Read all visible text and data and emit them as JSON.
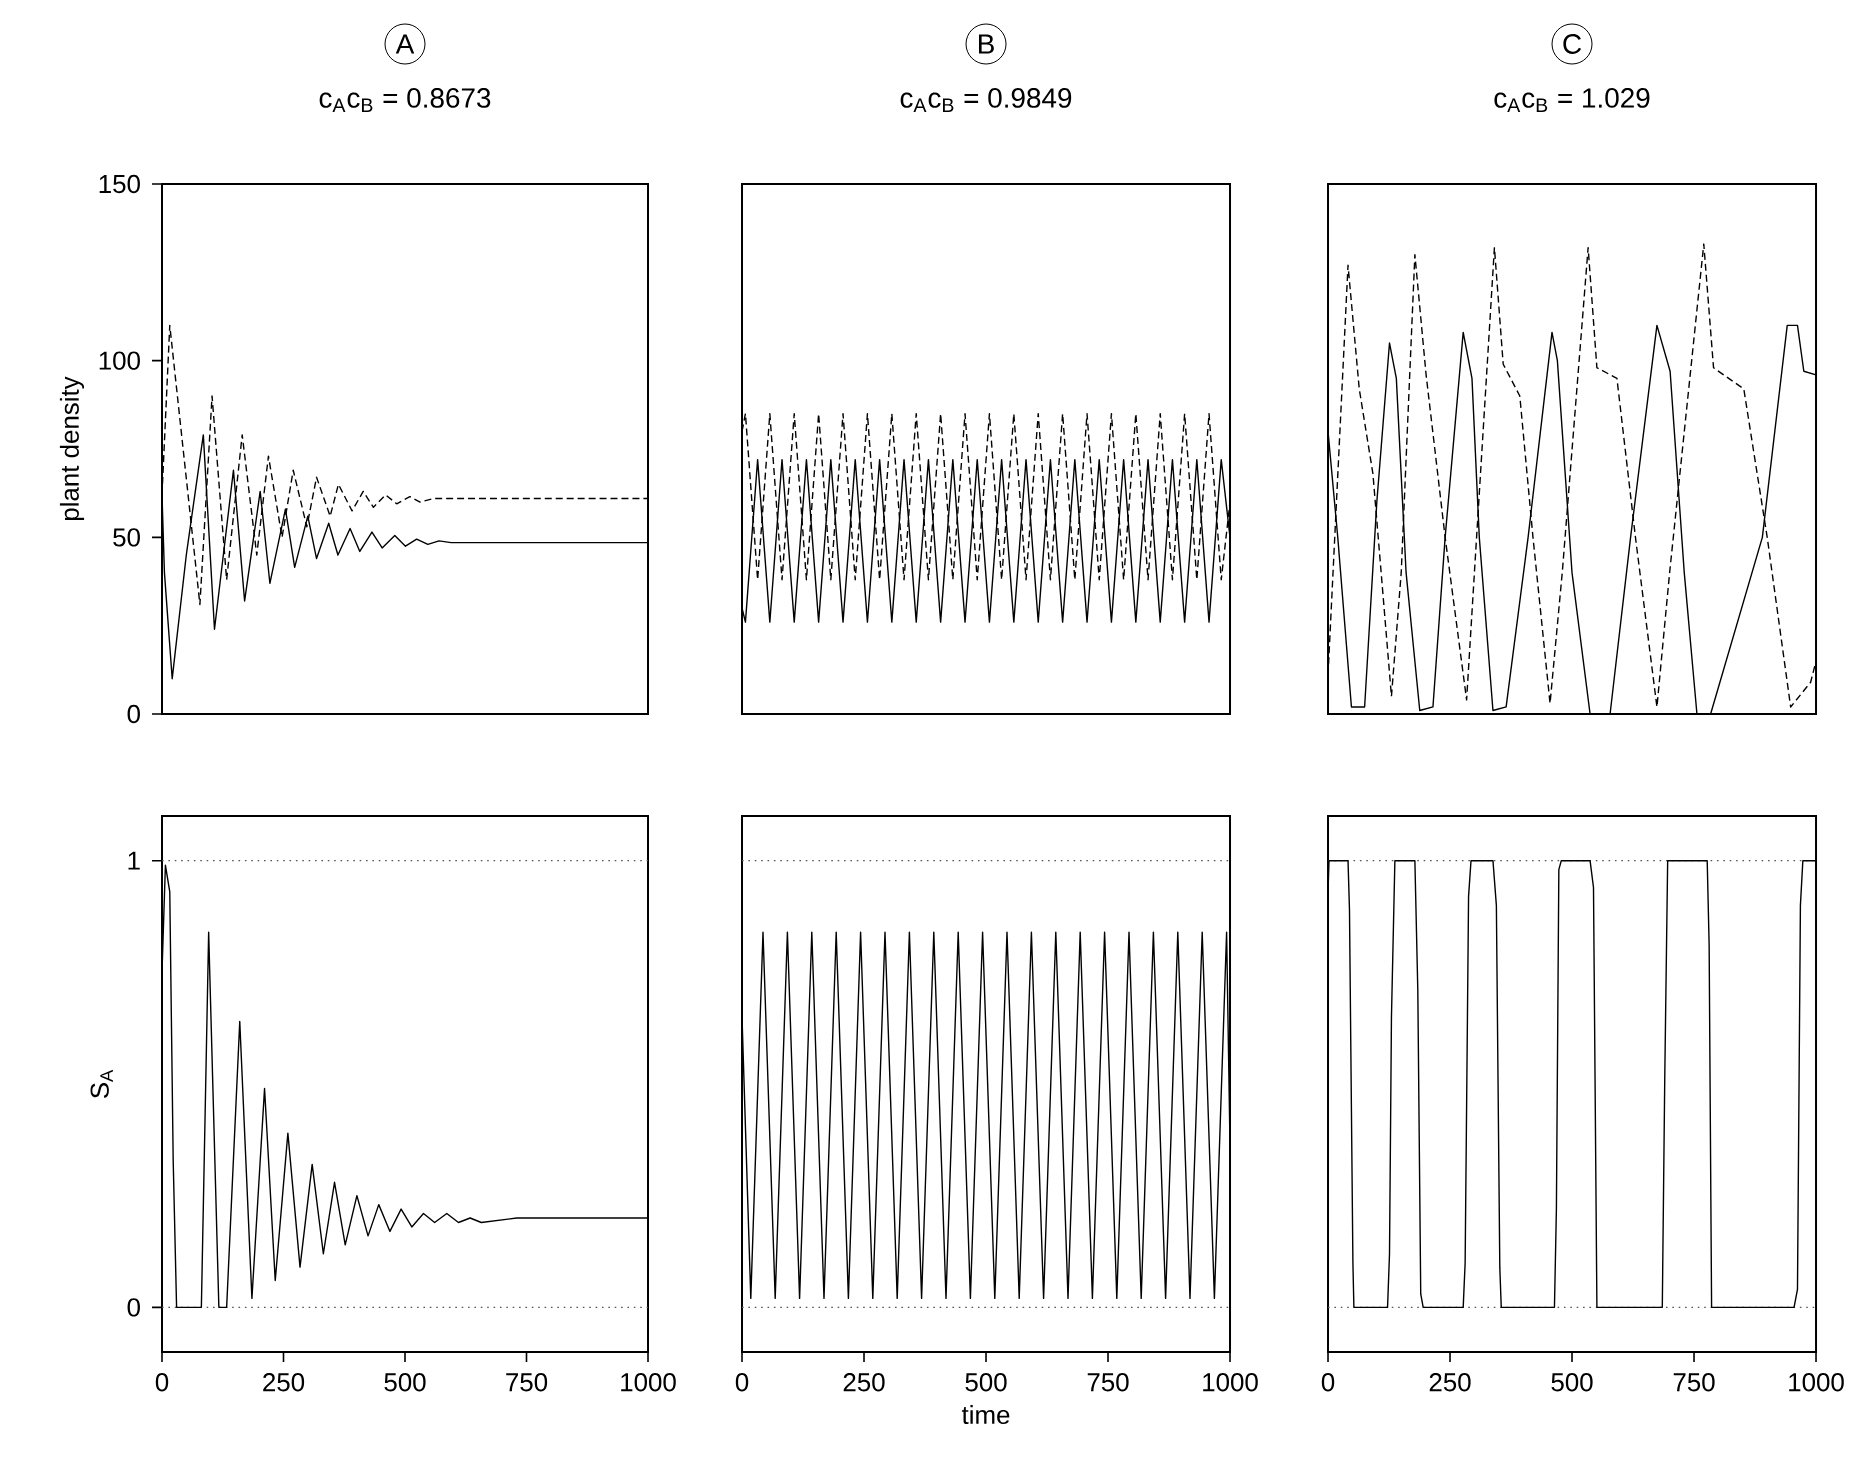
{
  "chart_data": [
    {
      "type": "line",
      "title": "A",
      "subtitle": "c$_{A}$c$_{B}$ = 0.8673",
      "ylabel": "plant density",
      "xlim": [
        0,
        1000
      ],
      "ylim": [
        0,
        150
      ],
      "yticks": [
        0,
        50,
        100,
        150
      ],
      "tick_labels": "y",
      "series": [
        {
          "color": "#000000",
          "line_style": "solid",
          "x": [
            0,
            5,
            21,
            50,
            85,
            108,
            147,
            170,
            202,
            222,
            254,
            273,
            300,
            318,
            343,
            362,
            387,
            407,
            432,
            453,
            479,
            501,
            524,
            547,
            570,
            595,
            650,
            1000
          ],
          "values": [
            62,
            40,
            10,
            45,
            79,
            24,
            69,
            32,
            63,
            37,
            58,
            41.5,
            56,
            44,
            54,
            45,
            52.5,
            46,
            51.5,
            47,
            50.5,
            47.5,
            49.5,
            48,
            49,
            48.5,
            48.5,
            48.5
          ]
        },
        {
          "color": "#000000",
          "line_style": "dashed",
          "x": [
            0,
            16,
            78,
            103,
            133,
            165,
            195,
            219,
            247,
            270,
            298,
            318,
            346,
            363,
            391,
            414,
            435,
            460,
            483,
            510,
            531,
            560,
            1000
          ],
          "values": [
            62,
            110,
            31,
            90,
            38,
            79,
            45,
            73,
            50,
            69,
            53,
            67,
            56,
            65,
            57.5,
            63,
            58.5,
            62,
            59.5,
            61.5,
            60,
            61,
            61
          ]
        }
      ]
    },
    {
      "type": "line",
      "title": "B",
      "subtitle": "c$_{A}$c$_{B}$ = 0.9849",
      "xlim": [
        0,
        1000
      ],
      "ylim": [
        0,
        150
      ],
      "tick_labels": false,
      "series": [
        {
          "color": "#000000",
          "line_style": "solid",
          "x": [
            0,
            7,
            32,
            57,
            82,
            107,
            132,
            157,
            182,
            207,
            232,
            257,
            282,
            307,
            332,
            357,
            382,
            407,
            432,
            457,
            482,
            507,
            532,
            557,
            582,
            607,
            632,
            657,
            682,
            707,
            732,
            757,
            782,
            807,
            832,
            857,
            882,
            907,
            932,
            957,
            982,
            1000
          ],
          "values": [
            30,
            26,
            72,
            26,
            72,
            26,
            72,
            26,
            72,
            26,
            72,
            26,
            72,
            26,
            72,
            26,
            72,
            26,
            72,
            26,
            72,
            26,
            72,
            26,
            72,
            26,
            72,
            26,
            72,
            26,
            72,
            26,
            72,
            26,
            72,
            26,
            72,
            26,
            72,
            26,
            72,
            50
          ]
        },
        {
          "color": "#000000",
          "line_style": "dashed",
          "x": [
            0,
            7,
            32,
            57,
            82,
            107,
            132,
            157,
            182,
            207,
            232,
            257,
            282,
            307,
            332,
            357,
            382,
            407,
            432,
            457,
            482,
            507,
            532,
            557,
            582,
            607,
            632,
            657,
            682,
            707,
            732,
            757,
            782,
            807,
            832,
            857,
            882,
            907,
            932,
            957,
            982,
            1000
          ],
          "values": [
            80,
            85,
            38,
            85,
            38,
            85,
            38,
            85,
            38,
            85,
            38,
            85,
            38,
            85,
            38,
            85,
            38,
            85,
            38,
            85,
            38,
            85,
            38,
            85,
            38,
            85,
            38,
            85,
            38,
            85,
            38,
            85,
            38,
            85,
            38,
            85,
            38,
            85,
            38,
            85,
            38,
            60
          ]
        }
      ]
    },
    {
      "type": "line",
      "title": "C",
      "subtitle": "c$_{A}$c$_{B}$ = 1.029",
      "xlim": [
        0,
        1000
      ],
      "ylim": [
        0,
        150
      ],
      "tick_labels": false,
      "series": [
        {
          "color": "#000000",
          "line_style": "solid",
          "x": [
            0,
            20,
            48,
            75,
            100,
            126,
            140,
            160,
            188,
            215,
            240,
            277,
            295,
            310,
            338,
            365,
            410,
            459,
            470,
            500,
            537,
            578,
            620,
            674,
            701,
            730,
            756,
            784,
            890,
            941,
            962,
            975,
            1000
          ],
          "values": [
            80,
            50,
            2,
            2,
            60,
            105,
            95,
            40,
            1,
            2,
            50,
            108,
            95,
            50,
            1,
            2,
            50,
            108,
            100,
            40,
            0,
            0,
            50,
            110,
            97,
            40,
            0,
            0,
            50,
            110,
            110,
            97,
            96
          ]
        },
        {
          "color": "#000000",
          "line_style": "dashed",
          "x": [
            0,
            41,
            64,
            92,
            130,
            150,
            178,
            201,
            240,
            284,
            300,
            341,
            359,
            393,
            420,
            455,
            480,
            533,
            551,
            592,
            630,
            674,
            700,
            770,
            790,
            852,
            900,
            948,
            989,
            1000
          ],
          "values": [
            11,
            127,
            92,
            68,
            5,
            40,
            130,
            96,
            50,
            4,
            40,
            132,
            99,
            90,
            50,
            3,
            40,
            132,
            98,
            95,
            50,
            2,
            40,
            133,
            98,
            92,
            50,
            2,
            9,
            15
          ]
        }
      ]
    },
    {
      "type": "line",
      "ylabel": "S$_{A}$",
      "xlim": [
        0,
        1000
      ],
      "ylim": [
        -0.1,
        1.1
      ],
      "xticks": [
        0,
        250,
        500,
        750,
        1000
      ],
      "yticks": [
        0,
        1
      ],
      "ref_lines": [
        {
          "axis": "y",
          "value": 0,
          "color": "#555555",
          "line_style": "dotted"
        },
        {
          "axis": "y",
          "value": 1,
          "color": "#555555",
          "line_style": "dotted"
        }
      ],
      "series": [
        {
          "color": "#000000",
          "line_style": "solid",
          "x": [
            0,
            7,
            16,
            23,
            30,
            81,
            96,
            117,
            133,
            160,
            185,
            211,
            233,
            259,
            284,
            309,
            332,
            355,
            377,
            401,
            424,
            446,
            469,
            492,
            514,
            538,
            561,
            586,
            610,
            634,
            657,
            730,
            1000
          ],
          "values": [
            0.75,
            0.99,
            0.93,
            0.33,
            0,
            0,
            0.84,
            0,
            0,
            0.64,
            0.02,
            0.49,
            0.06,
            0.39,
            0.09,
            0.32,
            0.12,
            0.28,
            0.14,
            0.25,
            0.16,
            0.23,
            0.17,
            0.22,
            0.18,
            0.21,
            0.19,
            0.21,
            0.19,
            0.2,
            0.19,
            0.2,
            0.2
          ]
        }
      ]
    },
    {
      "type": "line",
      "xlabel": "time",
      "xlim": [
        0,
        1000
      ],
      "ylim": [
        -0.1,
        1.1
      ],
      "xticks": [
        0,
        250,
        500,
        750,
        1000
      ],
      "tick_labels": "x",
      "ref_lines": [
        {
          "axis": "y",
          "value": 0,
          "color": "#555555",
          "line_style": "dotted"
        },
        {
          "axis": "y",
          "value": 1,
          "color": "#555555",
          "line_style": "dotted"
        }
      ],
      "series": [
        {
          "color": "#000000",
          "line_style": "solid",
          "x": [
            0,
            18,
            43,
            68,
            93,
            118,
            143,
            168,
            193,
            218,
            243,
            268,
            293,
            318,
            343,
            368,
            393,
            418,
            443,
            468,
            493,
            518,
            543,
            568,
            593,
            618,
            643,
            668,
            693,
            718,
            743,
            768,
            793,
            818,
            843,
            868,
            893,
            918,
            943,
            968,
            993,
            1000
          ],
          "values": [
            0.65,
            0.02,
            0.84,
            0.02,
            0.84,
            0.02,
            0.84,
            0.02,
            0.84,
            0.02,
            0.84,
            0.02,
            0.84,
            0.02,
            0.84,
            0.02,
            0.84,
            0.02,
            0.84,
            0.02,
            0.84,
            0.02,
            0.84,
            0.02,
            0.84,
            0.02,
            0.84,
            0.02,
            0.84,
            0.02,
            0.84,
            0.02,
            0.84,
            0.02,
            0.84,
            0.02,
            0.84,
            0.02,
            0.84,
            0.02,
            0.84,
            0.36
          ]
        }
      ]
    },
    {
      "type": "line",
      "xlim": [
        0,
        1000
      ],
      "ylim": [
        -0.1,
        1.1
      ],
      "xticks": [
        0,
        250,
        500,
        750,
        1000
      ],
      "tick_labels": "x",
      "ref_lines": [
        {
          "axis": "y",
          "value": 0,
          "color": "#555555",
          "line_style": "dotted"
        },
        {
          "axis": "y",
          "value": 1,
          "color": "#555555",
          "line_style": "dotted"
        }
      ],
      "series": [
        {
          "color": "#000000",
          "line_style": "solid",
          "x": [
            0,
            2,
            41,
            44,
            51,
            53,
            122,
            126,
            130,
            137,
            178,
            184,
            190,
            195,
            277,
            281,
            288,
            293,
            338,
            345,
            352,
            355,
            464,
            468,
            473,
            478,
            537,
            544,
            551,
            685,
            690,
            696,
            777,
            781,
            786,
            955,
            962,
            968,
            973,
            1000
          ],
          "values": [
            0.93,
            1,
            1,
            0.89,
            0.1,
            0,
            0,
            0.12,
            0.65,
            1,
            1,
            0.71,
            0.03,
            0,
            0,
            0.1,
            0.92,
            1,
            1,
            0.9,
            0.09,
            0,
            0,
            0.22,
            0.98,
            1,
            1,
            0.94,
            0,
            0,
            0.51,
            1,
            1,
            0.81,
            0,
            0,
            0.04,
            0.9,
            1,
            1
          ]
        }
      ]
    }
  ]
}
